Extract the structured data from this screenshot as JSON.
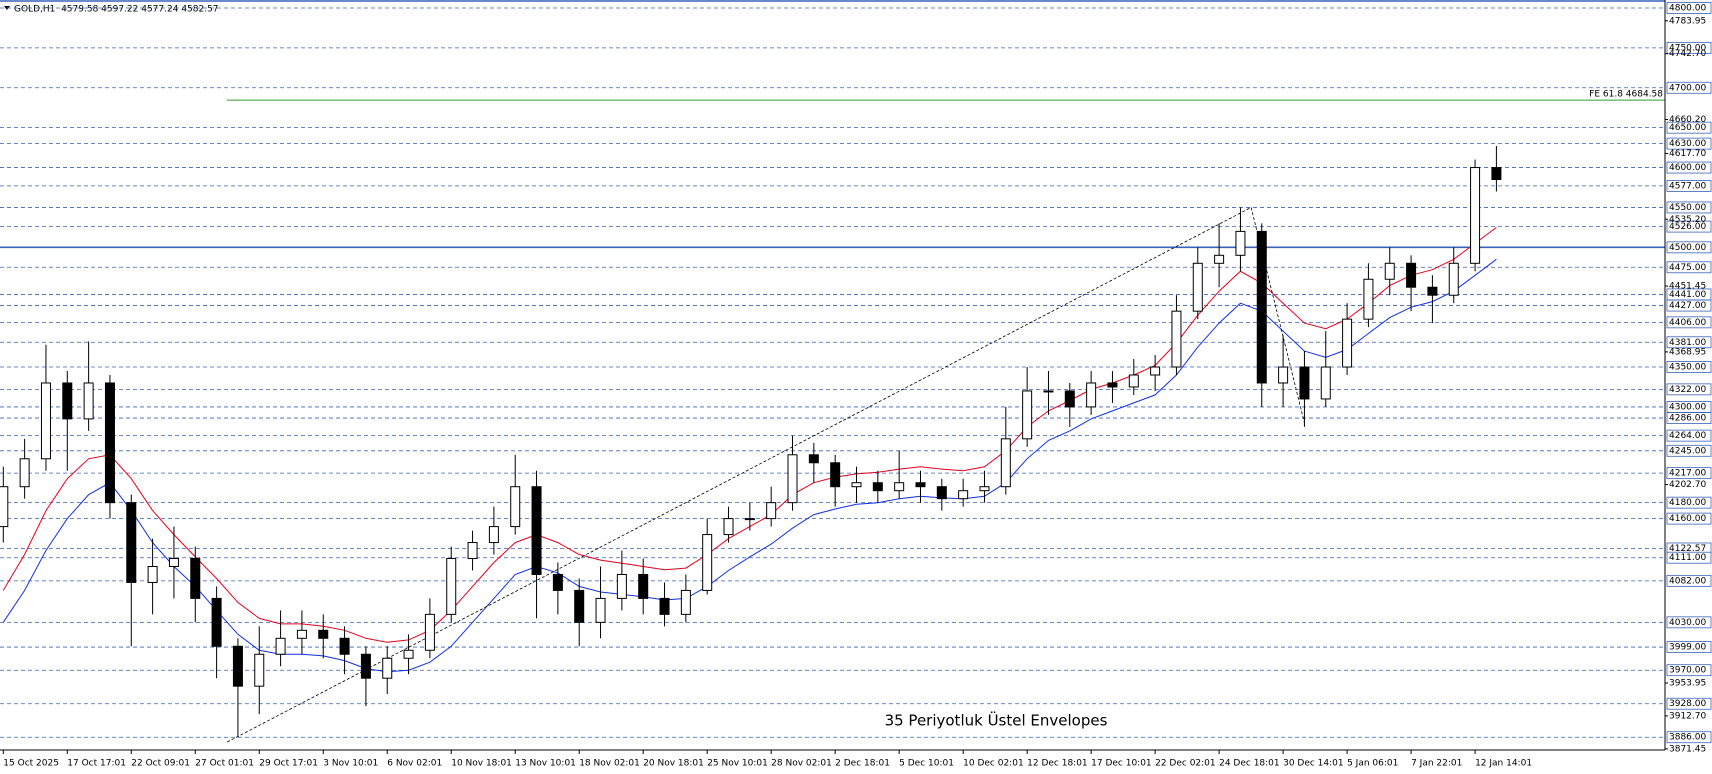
{
  "chart_data": {
    "type": "candlestick",
    "title": "GOLD,H1  4579.58 4597.22 4577.24 4582.57",
    "annotation": "35 Periyotluk Üstel Envelopes",
    "ylim": [
      3870,
      4810
    ],
    "categories": [
      "15 Oct 2025",
      null,
      null,
      "17 Oct 17:01",
      null,
      null,
      "22 Oct 09:01",
      null,
      null,
      "27 Oct 01:01",
      null,
      null,
      "29 Oct 17:01",
      null,
      null,
      "3 Nov 10:01",
      null,
      null,
      "6 Nov 02:01",
      null,
      null,
      "10 Nov 18:01",
      null,
      null,
      "13 Nov 10:01",
      null,
      null,
      "18 Nov 02:01",
      null,
      null,
      "20 Nov 18:01",
      null,
      null,
      "25 Nov 10:01",
      null,
      null,
      "28 Nov 02:01",
      null,
      null,
      "2 Dec 18:01",
      null,
      null,
      "5 Dec 10:01",
      null,
      null,
      "10 Dec 02:01",
      null,
      null,
      "12 Dec 18:01",
      null,
      null,
      "17 Dec 10:01",
      null,
      null,
      "22 Dec 02:01",
      null,
      null,
      "24 Dec 18:01",
      null,
      null,
      "30 Dec 14:01",
      null,
      null,
      "5 Jan 06:01",
      null,
      null,
      "7 Jan 22:01",
      null,
      null,
      "12 Jan 14:01",
      null
    ],
    "open": [
      4150,
      4200,
      4235,
      4330,
      4285,
      4330,
      4180,
      4080,
      4100,
      4110,
      4060,
      4000,
      3950,
      3990,
      4010,
      4020,
      4010,
      3990,
      3960,
      3985,
      3995,
      4040,
      4110,
      4130,
      4150,
      4200,
      4090,
      4070,
      4030,
      4060,
      4090,
      4060,
      4040,
      4070,
      4140,
      4160,
      4160,
      4180,
      4240,
      4230,
      4200,
      4205,
      4195,
      4205,
      4200,
      4185,
      4195,
      4200,
      4260,
      4320,
      4320,
      4300,
      4330,
      4325,
      4340,
      4350,
      4420,
      4480,
      4490,
      4520,
      4330,
      4350,
      4310,
      4350,
      4410,
      4460,
      4480,
      4450,
      4440,
      4480,
      4600
    ],
    "high": [
      4225,
      4260,
      4378,
      4345,
      4382,
      4340,
      4190,
      4135,
      4150,
      4125,
      4075,
      4010,
      4025,
      4045,
      4045,
      4040,
      4025,
      4000,
      4000,
      4015,
      4060,
      4125,
      4145,
      4175,
      4240,
      4220,
      4105,
      4085,
      4100,
      4120,
      4110,
      4080,
      4090,
      4160,
      4175,
      4180,
      4200,
      4264,
      4255,
      4240,
      4225,
      4220,
      4245,
      4220,
      4210,
      4210,
      4220,
      4300,
      4350,
      4345,
      4330,
      4345,
      4345,
      4360,
      4365,
      4440,
      4500,
      4530,
      4550,
      4530,
      4390,
      4370,
      4395,
      4430,
      4480,
      4500,
      4490,
      4465,
      4500,
      4610,
      4627
    ],
    "low": [
      4130,
      4185,
      4220,
      4220,
      4270,
      4160,
      4000,
      4040,
      4060,
      4030,
      3960,
      3886,
      3915,
      3975,
      3990,
      3985,
      3965,
      3925,
      3940,
      3965,
      3985,
      4030,
      4095,
      4115,
      4140,
      4035,
      4040,
      4000,
      4010,
      4045,
      4040,
      4025,
      4030,
      4065,
      4130,
      4145,
      4150,
      4170,
      4205,
      4175,
      4180,
      4180,
      4185,
      4180,
      4170,
      4175,
      4180,
      4190,
      4250,
      4290,
      4275,
      4290,
      4305,
      4315,
      4320,
      4340,
      4410,
      4450,
      4470,
      4300,
      4300,
      4275,
      4300,
      4340,
      4400,
      4440,
      4420,
      4405,
      4430,
      4470,
      4570
    ],
    "close": [
      4200,
      4235,
      4330,
      4285,
      4330,
      4180,
      4080,
      4100,
      4110,
      4060,
      4000,
      3950,
      3990,
      4010,
      4020,
      4010,
      3990,
      3960,
      3985,
      3995,
      4040,
      4110,
      4130,
      4150,
      4200,
      4090,
      4070,
      4030,
      4060,
      4090,
      4060,
      4040,
      4070,
      4140,
      4160,
      4160,
      4180,
      4240,
      4230,
      4200,
      4205,
      4195,
      4205,
      4200,
      4185,
      4195,
      4200,
      4260,
      4320,
      4320,
      4300,
      4330,
      4325,
      4340,
      4350,
      4420,
      4480,
      4490,
      4520,
      4330,
      4350,
      4310,
      4350,
      4410,
      4460,
      4480,
      4450,
      4440,
      4480,
      4600,
      4585
    ],
    "lines": [
      {
        "color": "#e8001c",
        "values": [
          4070,
          4115,
          4170,
          4210,
          4235,
          4240,
          4210,
          4170,
          4140,
          4112,
          4085,
          4055,
          4035,
          4028,
          4028,
          4025,
          4020,
          4010,
          4005,
          4008,
          4020,
          4045,
          4075,
          4105,
          4130,
          4140,
          4130,
          4115,
          4108,
          4104,
          4100,
          4096,
          4098,
          4115,
          4135,
          4150,
          4165,
          4190,
          4205,
          4212,
          4216,
          4218,
          4222,
          4225,
          4222,
          4220,
          4225,
          4245,
          4275,
          4295,
          4308,
          4322,
          4330,
          4340,
          4352,
          4380,
          4415,
          4445,
          4470,
          4455,
          4430,
          4405,
          4398,
          4410,
          4430,
          4452,
          4465,
          4472,
          4485,
          4505,
          4525
        ]
      },
      {
        "color": "#1030e8",
        "values": [
          4030,
          4070,
          4120,
          4160,
          4190,
          4205,
          4170,
          4130,
          4100,
          4075,
          4045,
          4015,
          3995,
          3990,
          3990,
          3988,
          3982,
          3972,
          3968,
          3970,
          3980,
          4000,
          4030,
          4060,
          4090,
          4100,
          4092,
          4075,
          4068,
          4065,
          4062,
          4058,
          4060,
          4075,
          4095,
          4112,
          4128,
          4148,
          4165,
          4172,
          4178,
          4180,
          4185,
          4188,
          4186,
          4185,
          4188,
          4205,
          4235,
          4258,
          4270,
          4285,
          4295,
          4305,
          4315,
          4340,
          4375,
          4405,
          4430,
          4420,
          4395,
          4370,
          4362,
          4372,
          4392,
          4412,
          4425,
          4432,
          4445,
          4465,
          4485
        ]
      }
    ],
    "trendlines": [
      {
        "x": [
          10.5,
          58.5
        ],
        "y": [
          3880,
          4550
        ]
      },
      {
        "x": [
          58.5,
          61
        ],
        "y": [
          4550,
          4280
        ]
      }
    ],
    "fe_line": {
      "value": 4684.58,
      "label": "FE 61.8 4684.58",
      "color": "#2e9e2e"
    },
    "levels": [
      {
        "value": 4800,
        "label": "4800.00"
      },
      {
        "value": 4750,
        "label": "4750.00"
      },
      {
        "value": 4700,
        "label": "4700.00"
      },
      {
        "value": 4650,
        "label": "4650.00"
      },
      {
        "value": 4630,
        "label": "4630.00"
      },
      {
        "value": 4600,
        "label": "4600.00"
      },
      {
        "value": 4577,
        "label": "4577.00"
      },
      {
        "value": 4550,
        "label": "4550.00"
      },
      {
        "value": 4526,
        "label": "4526.00"
      },
      {
        "value": 4475,
        "label": "4475.00"
      },
      {
        "value": 4441,
        "label": "4441.00"
      },
      {
        "value": 4427,
        "label": "4427.00"
      },
      {
        "value": 4406,
        "label": "4406.00"
      },
      {
        "value": 4381,
        "label": "4381.00"
      },
      {
        "value": 4350,
        "label": "4350.00"
      },
      {
        "value": 4322,
        "label": "4322.00"
      },
      {
        "value": 4300,
        "label": "4300.00"
      },
      {
        "value": 4286,
        "label": "4286.00"
      },
      {
        "value": 4264,
        "label": "4264.00"
      },
      {
        "value": 4245,
        "label": "4245.00"
      },
      {
        "value": 4217,
        "label": "4217.00"
      },
      {
        "value": 4180,
        "label": "4180.00"
      },
      {
        "value": 4160,
        "label": "4160.00"
      },
      {
        "value": 4122.57,
        "label": "4122.57"
      },
      {
        "value": 4111,
        "label": "4111.00"
      },
      {
        "value": 4082,
        "label": "4082.00"
      },
      {
        "value": 4030,
        "label": "4030.00"
      },
      {
        "value": 3999,
        "label": "3999.00"
      },
      {
        "value": 3970,
        "label": "3970.00"
      },
      {
        "value": 3928,
        "label": "3928.00"
      },
      {
        "value": 3886,
        "label": "3886.00"
      }
    ],
    "solid_levels": [
      {
        "value": 4500,
        "label": "4500.00"
      }
    ],
    "yticks": [
      {
        "value": 4783.95,
        "label": "4783.95"
      },
      {
        "value": 4742.7,
        "label": "4742.70"
      },
      {
        "value": 4660.2,
        "label": "4660.20"
      },
      {
        "value": 4617.7,
        "label": "4617.70"
      },
      {
        "value": 4535.2,
        "label": "4535.20"
      },
      {
        "value": 4451.45,
        "label": "4451.45"
      },
      {
        "value": 4368.95,
        "label": "4368.95"
      },
      {
        "value": 4202.7,
        "label": "4202.70"
      },
      {
        "value": 3953.95,
        "label": "3953.95"
      },
      {
        "value": 3912.7,
        "label": "3912.70"
      },
      {
        "value": 3871.45,
        "label": "3871.45"
      }
    ],
    "level_color": "#3a62b8",
    "annotation_color": "#5b7fd0"
  }
}
